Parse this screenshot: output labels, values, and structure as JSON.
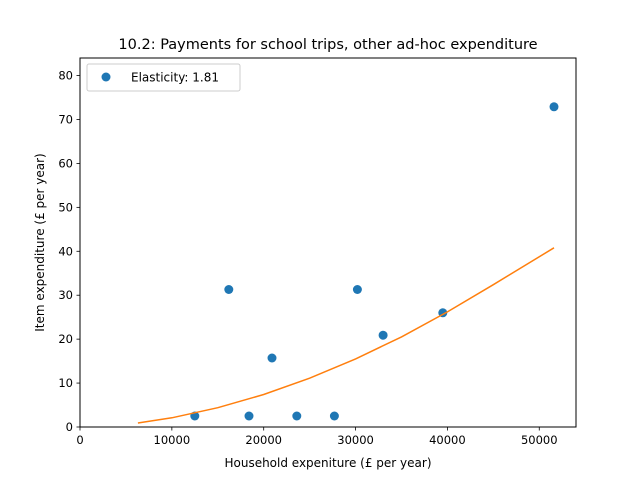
{
  "chart_data": {
    "type": "scatter",
    "title": "10.2: Payments for school trips, other ad-hoc expenditure",
    "xlabel": "Household expeniture (£ per year)",
    "ylabel": "Item expenditure (£ per year)",
    "xlim": [
      0,
      54000
    ],
    "ylim": [
      0,
      84
    ],
    "x_ticks": [
      0,
      10000,
      20000,
      30000,
      40000,
      50000
    ],
    "y_ticks": [
      0,
      10,
      20,
      30,
      40,
      50,
      60,
      70,
      80
    ],
    "grid": false,
    "legend_position": "top-left",
    "series": [
      {
        "name": "Elasticity: 1.81",
        "kind": "scatter",
        "color": "#1f77b4",
        "points": [
          {
            "x": 12500,
            "y": 2.5
          },
          {
            "x": 16200,
            "y": 31.3
          },
          {
            "x": 18400,
            "y": 2.5
          },
          {
            "x": 20900,
            "y": 15.7
          },
          {
            "x": 23600,
            "y": 2.5
          },
          {
            "x": 27700,
            "y": 2.5
          },
          {
            "x": 30200,
            "y": 31.3
          },
          {
            "x": 33000,
            "y": 20.9
          },
          {
            "x": 39500,
            "y": 26.0
          },
          {
            "x": 51600,
            "y": 72.9
          }
        ]
      },
      {
        "kind": "line",
        "color": "#ff7f0e",
        "points": [
          {
            "x": 6300,
            "y": 0.9
          },
          {
            "x": 10000,
            "y": 2.1
          },
          {
            "x": 15000,
            "y": 4.4
          },
          {
            "x": 20000,
            "y": 7.4
          },
          {
            "x": 25000,
            "y": 11.1
          },
          {
            "x": 30000,
            "y": 15.5
          },
          {
            "x": 35000,
            "y": 20.5
          },
          {
            "x": 40000,
            "y": 26.2
          },
          {
            "x": 45000,
            "y": 32.4
          },
          {
            "x": 51600,
            "y": 40.8
          }
        ]
      }
    ]
  }
}
